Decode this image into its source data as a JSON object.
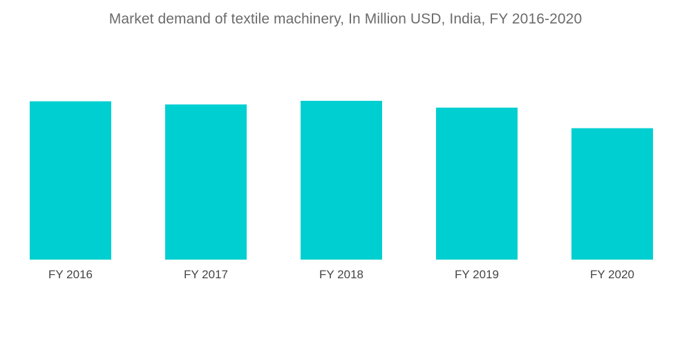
{
  "chart_data": {
    "type": "bar",
    "title": "Market demand of textile machinery, In Million USD, India, FY 2016-2020",
    "categories": [
      "FY 2016",
      "FY 2017",
      "FY 2018",
      "FY 2019",
      "FY 2020"
    ],
    "values": [
      100,
      98,
      100.3,
      96,
      83
    ],
    "xlabel": "",
    "ylabel": "",
    "ylim": [
      0,
      100.3
    ],
    "grid": false,
    "legend": "none",
    "bar_color": "#00cfd1"
  }
}
